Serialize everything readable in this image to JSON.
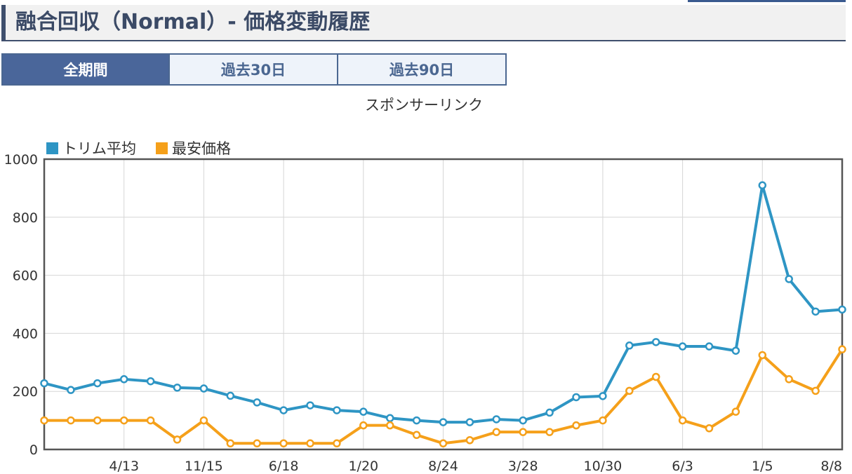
{
  "page": {
    "title": "融合回収（Normal）- 価格変動履歴"
  },
  "tabs": [
    {
      "label": "全期間",
      "active": true
    },
    {
      "label": "過去30日",
      "active": false
    },
    {
      "label": "過去90日",
      "active": false
    }
  ],
  "sponsor_label": "スポンサーリンク",
  "colors": {
    "series1": "#2e95c4",
    "series2": "#f5a01a",
    "accent": "#4a669a"
  },
  "chart_data": {
    "type": "line",
    "x_tick_labels": [
      "4/13",
      "11/15",
      "6/18",
      "1/20",
      "8/24",
      "3/28",
      "10/30",
      "6/3",
      "1/5",
      "8/8"
    ],
    "ylim": [
      0,
      1000
    ],
    "y_ticks": [
      0,
      200,
      400,
      600,
      800,
      1000
    ],
    "grid": true,
    "legend_position": "top-left",
    "series": [
      {
        "name": "トリム平均",
        "color": "#2e95c4",
        "values": [
          228,
          205,
          228,
          242,
          235,
          213,
          210,
          185,
          162,
          135,
          152,
          135,
          130,
          108,
          100,
          94,
          94,
          104,
          100,
          127,
          180,
          184,
          358,
          370,
          355,
          355,
          340,
          910,
          587,
          475,
          482
        ]
      },
      {
        "name": "最安価格",
        "color": "#f5a01a",
        "values": [
          100,
          100,
          100,
          100,
          100,
          34,
          100,
          21,
          21,
          21,
          21,
          21,
          83,
          83,
          50,
          21,
          32,
          60,
          60,
          60,
          83,
          100,
          202,
          250,
          100,
          73,
          130,
          325,
          242,
          202,
          345
        ]
      }
    ]
  }
}
